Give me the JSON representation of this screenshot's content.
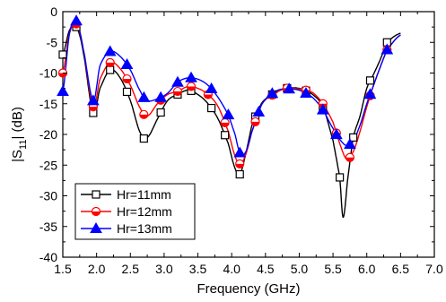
{
  "chart_data": {
    "type": "line",
    "xlabel": "Frequency (GHz)",
    "ylabel_main": "|S",
    "ylabel_sub": "11",
    "ylabel_tail": "| (dB)",
    "xlim": [
      1.5,
      7.0
    ],
    "ylim": [
      -40,
      0
    ],
    "x_ticks": [
      "1.5",
      "2.0",
      "2.5",
      "3.0",
      "3.5",
      "4.0",
      "4.5",
      "5.0",
      "5.5",
      "6.0",
      "6.5",
      "7.0"
    ],
    "y_ticks": [
      "0",
      "-5",
      "-10",
      "-15",
      "-20",
      "-25",
      "-30",
      "-35",
      "-40"
    ],
    "grid": false,
    "legend_position": "bottom-left",
    "series": [
      {
        "name": "Hr=11mm",
        "color": "#000000",
        "marker": "open-square",
        "x": [
          1.5,
          1.6,
          1.7,
          1.8,
          1.95,
          2.05,
          2.2,
          2.35,
          2.5,
          2.65,
          2.75,
          2.9,
          3.05,
          3.2,
          3.35,
          3.5,
          3.65,
          3.8,
          3.95,
          4.05,
          4.12,
          4.2,
          4.3,
          4.45,
          4.65,
          4.8,
          5.0,
          5.2,
          5.35,
          5.5,
          5.6,
          5.65,
          5.72,
          5.8,
          5.9,
          6.0,
          6.1,
          6.2,
          6.3,
          6.5
        ],
        "y": [
          -7.0,
          -3.0,
          -2.5,
          -6.5,
          -16.5,
          -12.5,
          -9.5,
          -10.8,
          -14.5,
          -19.8,
          -20.5,
          -17.5,
          -14.5,
          -13.5,
          -12.8,
          -13.5,
          -15.0,
          -17.5,
          -21.5,
          -25.5,
          -26.5,
          -23.5,
          -18.5,
          -14.8,
          -13.2,
          -12.5,
          -12.5,
          -13.5,
          -15.5,
          -21.0,
          -27.0,
          -33.5,
          -27.0,
          -20.5,
          -17.0,
          -12.5,
          -10.2,
          -7.8,
          -5.0,
          -3.5
        ]
      },
      {
        "name": "Hr=12mm",
        "color": "#ff0000",
        "marker": "half-filled-circle",
        "x": [
          1.5,
          1.6,
          1.7,
          1.8,
          1.95,
          2.05,
          2.2,
          2.35,
          2.5,
          2.65,
          2.75,
          2.9,
          3.05,
          3.2,
          3.35,
          3.5,
          3.65,
          3.8,
          3.95,
          4.05,
          4.12,
          4.2,
          4.3,
          4.45,
          4.65,
          4.8,
          5.0,
          5.2,
          5.35,
          5.5,
          5.6,
          5.7,
          5.8,
          5.9,
          6.0,
          6.1,
          6.2,
          6.3,
          6.5
        ],
        "y": [
          -10.0,
          -3.5,
          -2.0,
          -6.0,
          -15.5,
          -11.0,
          -8.3,
          -9.3,
          -12.0,
          -15.8,
          -17.0,
          -15.0,
          -13.5,
          -13.0,
          -12.2,
          -12.5,
          -13.5,
          -15.5,
          -19.5,
          -23.5,
          -24.8,
          -23.5,
          -19.5,
          -15.0,
          -13.3,
          -12.5,
          -12.6,
          -13.2,
          -15.0,
          -18.0,
          -21.5,
          -24.0,
          -22.8,
          -19.5,
          -15.5,
          -12.0,
          -9.0,
          -6.2,
          -3.8
        ]
      },
      {
        "name": "Hr=13mm",
        "color": "#0000ff",
        "marker": "filled-triangle",
        "x": [
          1.5,
          1.6,
          1.7,
          1.8,
          1.95,
          2.05,
          2.2,
          2.35,
          2.5,
          2.65,
          2.75,
          2.9,
          3.05,
          3.2,
          3.35,
          3.5,
          3.65,
          3.8,
          3.95,
          4.05,
          4.12,
          4.2,
          4.3,
          4.45,
          4.65,
          4.8,
          5.0,
          5.2,
          5.35,
          5.5,
          5.6,
          5.7,
          5.8,
          5.9,
          6.0,
          6.1,
          6.2,
          6.3,
          6.5
        ],
        "y": [
          -13.0,
          -3.5,
          -1.5,
          -6.0,
          -14.5,
          -8.8,
          -6.5,
          -7.3,
          -9.5,
          -13.0,
          -14.5,
          -14.2,
          -13.3,
          -11.5,
          -10.8,
          -11.0,
          -12.0,
          -14.0,
          -16.8,
          -20.0,
          -23.0,
          -23.0,
          -19.5,
          -15.0,
          -13.0,
          -12.6,
          -12.8,
          -14.0,
          -16.0,
          -19.0,
          -20.8,
          -21.8,
          -21.0,
          -18.5,
          -15.0,
          -12.0,
          -9.0,
          -6.2,
          -3.8
        ]
      }
    ],
    "markers_shown_at": [
      [
        1.5,
        1.7,
        1.95,
        2.2,
        2.45,
        2.7,
        2.95,
        3.2,
        3.4,
        3.7,
        3.9,
        4.12,
        4.35,
        4.6,
        4.82,
        5.1,
        5.35,
        5.6,
        5.8,
        6.05,
        6.3
      ],
      [
        1.5,
        1.7,
        1.95,
        2.2,
        2.45,
        2.7,
        2.95,
        3.2,
        3.4,
        3.65,
        3.9,
        4.12,
        4.35,
        4.6,
        4.82,
        5.1,
        5.35,
        5.55,
        5.75,
        6.05,
        6.3
      ],
      [
        1.5,
        1.7,
        1.95,
        2.2,
        2.45,
        2.7,
        2.95,
        3.2,
        3.4,
        3.7,
        3.95,
        4.12,
        4.4,
        4.6,
        4.85,
        5.1,
        5.35,
        5.55,
        5.75,
        6.05,
        6.3
      ]
    ]
  }
}
